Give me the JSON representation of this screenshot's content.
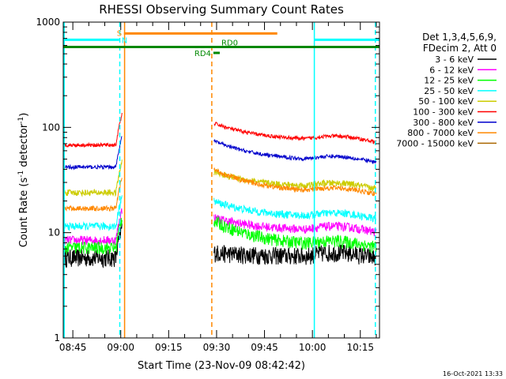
{
  "chart_data": {
    "type": "line",
    "title": "RHESSI Observing Summary Count Rates",
    "xlabel": "Start Time (23-Nov-09 08:42:42)",
    "ylabel_main": "Count Rate (s",
    "ylabel_sup1": "-1",
    "ylabel_mid": " detector",
    "ylabel_sup2": "-1",
    "ylabel_end": ")",
    "yscale": "log",
    "ylim": [
      1,
      1000
    ],
    "xlim_minutes": [
      522,
      621
    ],
    "y_ticks": [
      "1",
      "10",
      "100",
      "1000"
    ],
    "x_ticks": [
      {
        "label": "08:45",
        "minute": 525
      },
      {
        "label": "09:00",
        "minute": 540
      },
      {
        "label": "09:15",
        "minute": 555
      },
      {
        "label": "09:30",
        "minute": 570
      },
      {
        "label": "09:45",
        "minute": 585
      },
      {
        "label": "10:00",
        "minute": 600
      },
      {
        "label": "10:15",
        "minute": 615
      }
    ],
    "legend_header": [
      "Det 1,3,4,5,6,9,",
      "FDecim 2, Att 0"
    ],
    "legend_placement": "right",
    "timestamp": "16-Oct-2021 13:33",
    "series": [
      {
        "name": "3 - 6 keV",
        "color": "#000000",
        "pre": 5.8,
        "post_peak": 6.5,
        "post_end": 6.0,
        "noise": 0.14
      },
      {
        "name": "6 - 12 keV",
        "color": "#ff00ff",
        "pre": 8.5,
        "post_peak": 14,
        "post_end": 10.5,
        "noise": 0.07
      },
      {
        "name": "12 - 25 keV",
        "color": "#00ff00",
        "pre": 7.2,
        "post_peak": 13,
        "post_end": 7.5,
        "noise": 0.1
      },
      {
        "name": "25 - 50 keV",
        "color": "#00ffff",
        "pre": 11.5,
        "post_peak": 20,
        "post_end": 14,
        "noise": 0.06
      },
      {
        "name": "50 - 100 keV",
        "color": "#cccc00",
        "pre": 24,
        "post_peak": 38,
        "post_end": 27,
        "noise": 0.05
      },
      {
        "name": "100 - 300 keV",
        "color": "#ff0000",
        "pre": 68,
        "post_peak": 110,
        "post_end": 75,
        "noise": 0.03
      },
      {
        "name": "300 - 800 keV",
        "color": "#0000cc",
        "pre": 42,
        "post_peak": 75,
        "post_end": 48,
        "noise": 0.03
      },
      {
        "name": "800 - 7000 keV",
        "color": "#ff8800",
        "pre": 17,
        "post_peak": 40,
        "post_end": 24,
        "noise": 0.04
      },
      {
        "name": "7000 - 15000 keV",
        "color": "#aa6600",
        "pre": null,
        "post_peak": null,
        "post_end": null,
        "noise": 0
      }
    ],
    "flags": [
      {
        "label": "S",
        "color": "#ff8800",
        "minute_start": 541,
        "minute_end": 589,
        "level": 780
      },
      {
        "label": "N",
        "color": "#00ffff",
        "minute_start": 522,
        "minute_end": 539.5,
        "level": 680
      },
      {
        "label": "",
        "color": "#00ffff",
        "minute_start": 600.5,
        "minute_end": 621,
        "level": 680
      },
      {
        "label": "RD0",
        "color": "#008800",
        "minute_start": 522,
        "minute_end": 621,
        "level": 580
      },
      {
        "label": "RD4",
        "color": "#008800",
        "minute_start": 569,
        "minute_end": 571,
        "level": 510
      }
    ],
    "vertical_lines": [
      {
        "minute": 522.3,
        "color": "#00ffff",
        "style": "solid"
      },
      {
        "minute": 539.7,
        "color": "#00ffff",
        "style": "dashed"
      },
      {
        "minute": 541.2,
        "color": "#ff8800",
        "style": "solid"
      },
      {
        "minute": 568.5,
        "color": "#ff8800",
        "style": "dashed"
      },
      {
        "minute": 600.6,
        "color": "#00ffff",
        "style": "solid"
      },
      {
        "minute": 619.7,
        "color": "#00ffff",
        "style": "dashed"
      }
    ],
    "data_gap_minutes": [
      540,
      569
    ]
  }
}
